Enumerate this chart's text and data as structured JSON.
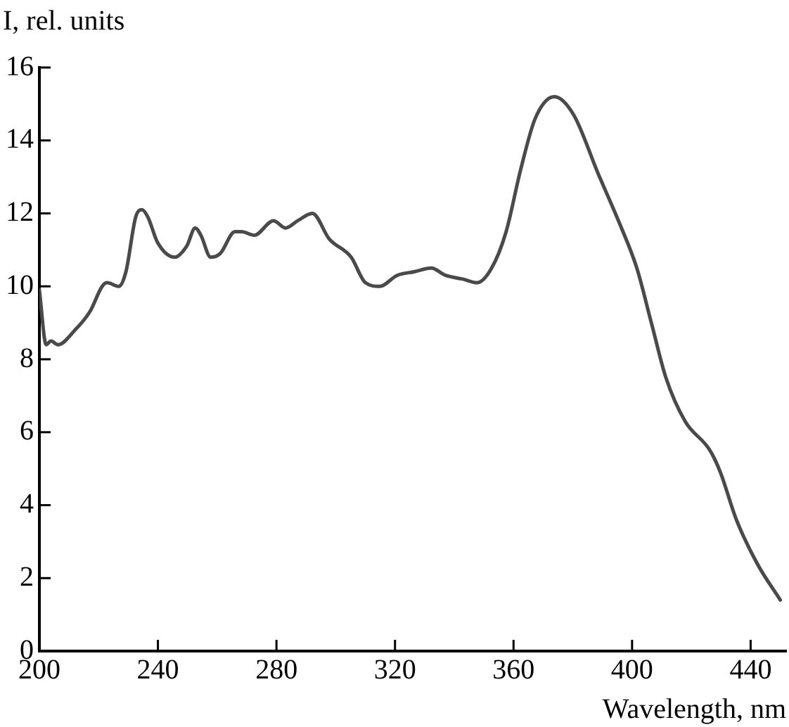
{
  "chart_data": {
    "type": "line",
    "xlabel": "Wavelength, nm",
    "ylabel": "I, rel. units",
    "xlim": [
      200,
      452
    ],
    "xticks": [
      200,
      240,
      280,
      320,
      360,
      400,
      440
    ],
    "ylim": [
      0,
      16
    ],
    "yticks": [
      0,
      2,
      4,
      6,
      8,
      10,
      12,
      14,
      16
    ],
    "grid": false,
    "legend": false,
    "marker": "none",
    "line_style": "solid",
    "series": [
      {
        "color": "#4a4a4a",
        "x": [
          200,
          202.3,
          203.9,
          206.3,
          212,
          217,
          221.2,
          222.8,
          226.8,
          229.2,
          232.5,
          234.6,
          236.6,
          239.9,
          245.7,
          249.7,
          252.6,
          254.5,
          257.8,
          261,
          266,
          268.2,
          272.5,
          279,
          283.1,
          287.2,
          292.1,
          297.8,
          305.2,
          310,
          314.9,
          320.7,
          326.5,
          332.2,
          337.1,
          342.8,
          347.7,
          352.6,
          357.5,
          362.4,
          367.3,
          373.8,
          380.3,
          388.5,
          395.9,
          401.6,
          406.5,
          411.4,
          417.9,
          426.3,
          429.8,
          435.2,
          442.2,
          450
        ],
        "values": [
          9.9,
          8.4,
          8.5,
          8.4,
          8.8,
          9.3,
          10.0,
          10.1,
          10.0,
          10.4,
          11.9,
          12.1,
          11.9,
          11.2,
          10.8,
          11.1,
          11.6,
          11.4,
          10.8,
          10.9,
          11.5,
          11.5,
          11.4,
          11.8,
          11.6,
          11.8,
          12.0,
          11.3,
          10.8,
          10.1,
          10.0,
          10.3,
          10.4,
          10.5,
          10.3,
          10.2,
          10.1,
          10.5,
          11.5,
          13.2,
          14.6,
          15.2,
          14.7,
          13.1,
          11.7,
          10.5,
          9.0,
          7.5,
          6.3,
          5.5,
          4.9,
          3.6,
          2.4,
          1.4
        ]
      }
    ]
  }
}
